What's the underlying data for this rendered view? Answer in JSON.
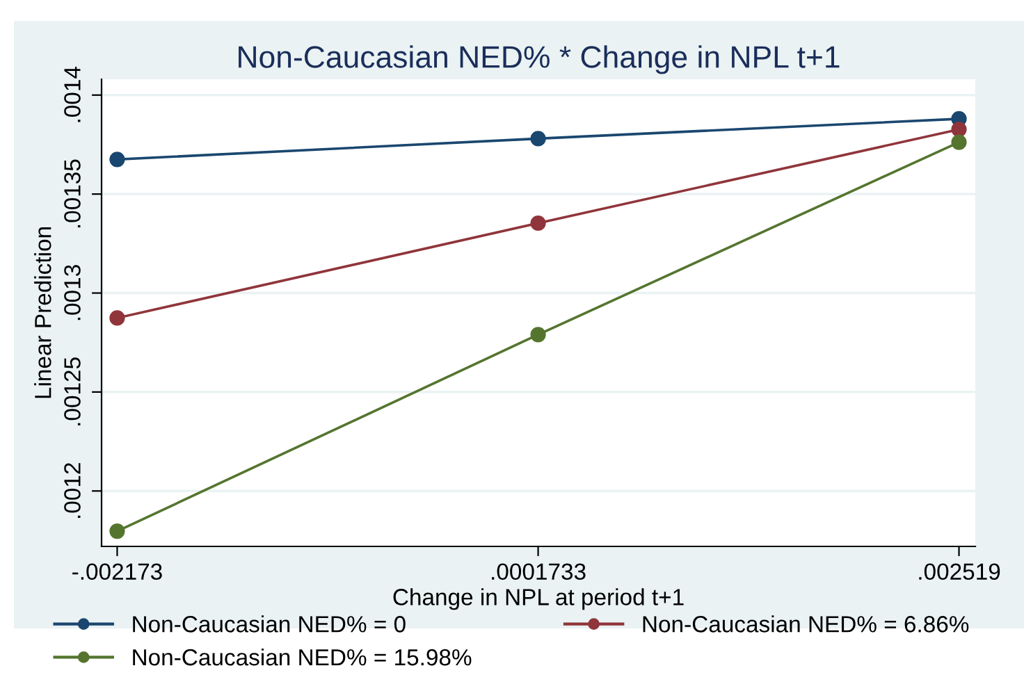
{
  "chart_data": {
    "type": "line",
    "title": "Non-Caucasian NED% * Change in NPL t+1",
    "xlabel": "Change in NPL at period t+1",
    "ylabel": "Linear Prediction",
    "x": [
      -0.002173,
      0.0001733,
      0.002519
    ],
    "series": [
      {
        "name": "Non-Caucasian NED% = 0",
        "color": "#1a476f",
        "values": [
          0.0013675,
          0.001378,
          0.001388
        ]
      },
      {
        "name": "Non-Caucasian NED% = 6.86%",
        "color": "#90353b",
        "values": [
          0.0012874,
          0.0013353,
          0.0013827
        ]
      },
      {
        "name": "Non-Caucasian NED% = 15.98%",
        "color": "#55752f",
        "values": [
          0.0011797,
          0.001279,
          0.0013762
        ]
      }
    ],
    "xlim": [
      -0.00226,
      0.00261
    ],
    "ylim": [
      0.001172,
      0.001408
    ],
    "xticks": [
      {
        "value": -0.002173,
        "label": "-.002173"
      },
      {
        "value": 0.0001733,
        "label": ".0001733"
      },
      {
        "value": 0.002519,
        "label": ".002519"
      }
    ],
    "yticks": [
      {
        "value": 0.0012,
        "label": ".0012"
      },
      {
        "value": 0.00125,
        "label": ".00125"
      },
      {
        "value": 0.0013,
        "label": ".0013"
      },
      {
        "value": 0.00135,
        "label": ".00135"
      },
      {
        "value": 0.0014,
        "label": ".0014"
      }
    ],
    "grid": "y",
    "legend": "bottom",
    "marker": "circle",
    "line_style": "solid"
  }
}
